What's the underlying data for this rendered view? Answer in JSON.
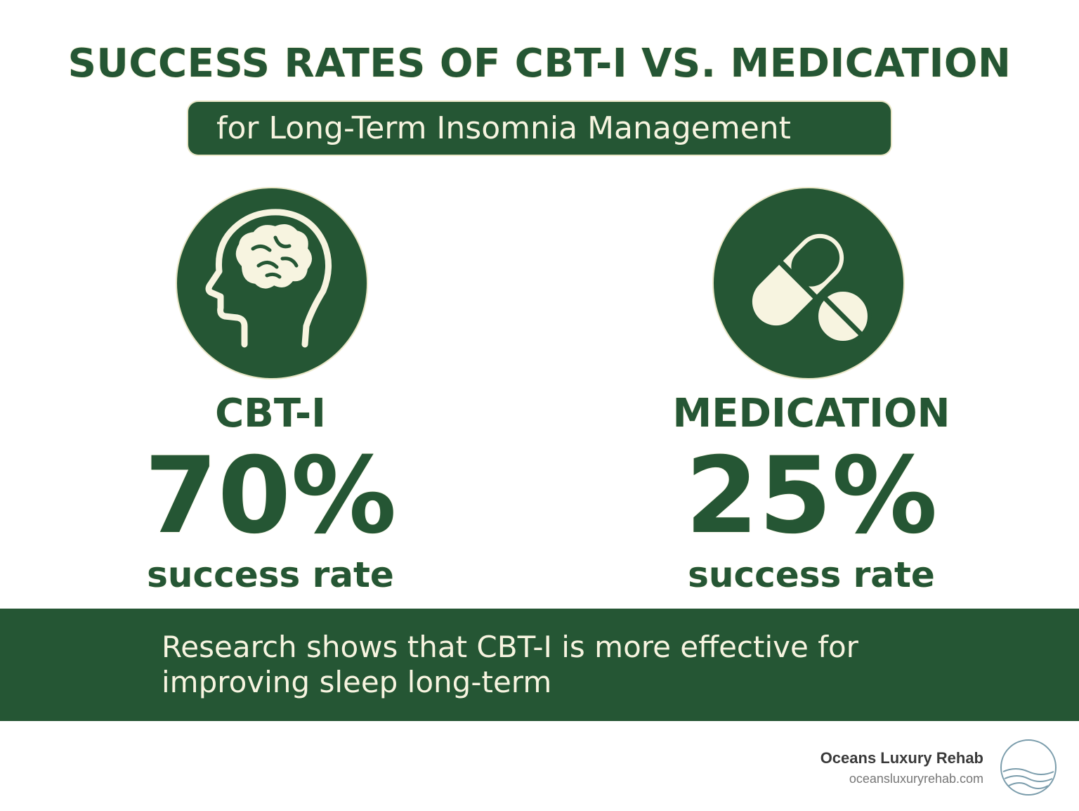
{
  "header": {
    "title": "SUCCESS RATES OF CBT-I VS. MEDICATION",
    "subtitle": "for Long-Term Insomnia Management"
  },
  "cbti": {
    "icon": "head-brain-icon",
    "label": "CBT-I",
    "percent": "70%",
    "caption": "success rate"
  },
  "medication": {
    "icon": "pill-capsule-icon",
    "label": "MEDICATION",
    "percent": "25%",
    "caption": "success rate"
  },
  "banner": {
    "text": "Research shows that CBT-I is more effective for improving sleep long-term"
  },
  "brand": {
    "name": "Oceans Luxury Rehab",
    "url": "oceansluxuryrehab.com",
    "logo_icon": "ocean-wave-logo-icon"
  },
  "colors": {
    "primary": "#255634",
    "cream": "#F7F4E0",
    "background": "#FFFFFF"
  }
}
